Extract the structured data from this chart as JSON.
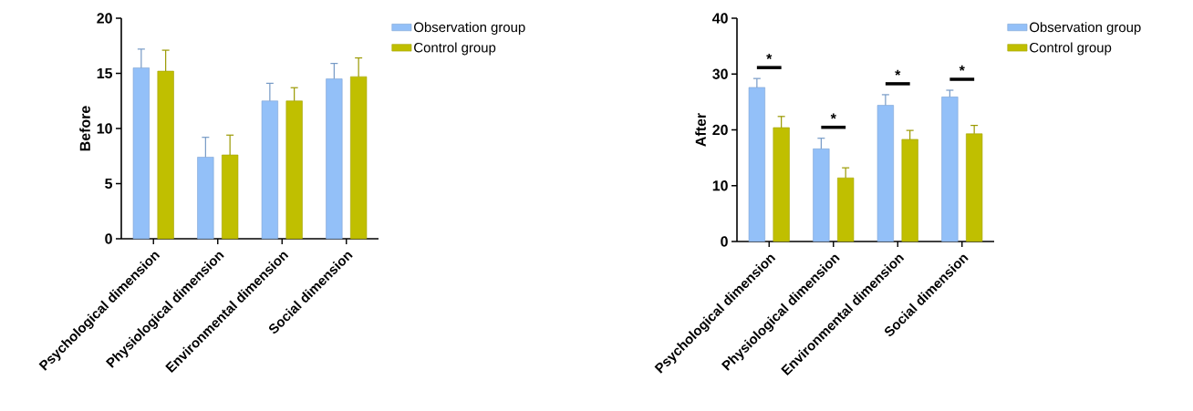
{
  "chart_data": [
    {
      "type": "bar",
      "ylabel": "Before",
      "categories": [
        "Psychological dimension",
        "Physiological dimension",
        "Environmental dimension",
        "Social dimension"
      ],
      "series": [
        {
          "name": "Observation group",
          "color": "#93c0f8",
          "values": [
            15.5,
            7.4,
            12.5,
            14.5
          ],
          "errors": [
            1.7,
            1.8,
            1.6,
            1.4
          ]
        },
        {
          "name": "Control group",
          "color": "#c0bf00",
          "values": [
            15.2,
            7.6,
            12.5,
            14.7
          ],
          "errors": [
            1.9,
            1.8,
            1.2,
            1.7
          ]
        }
      ],
      "ylim": [
        0,
        20
      ],
      "yticks": [
        0,
        5,
        10,
        15,
        20
      ],
      "legend": "top right",
      "grid": false
    },
    {
      "type": "bar",
      "ylabel": "After",
      "categories": [
        "Psychological dimension",
        "Physiological dimension",
        "Environmental dimension",
        "Social dimension"
      ],
      "series": [
        {
          "name": "Observation group",
          "color": "#93c0f8",
          "values": [
            27.6,
            16.6,
            24.4,
            25.9
          ],
          "errors": [
            1.6,
            1.9,
            1.9,
            1.2
          ]
        },
        {
          "name": "Control group",
          "color": "#c0bf00",
          "values": [
            20.4,
            11.4,
            18.3,
            19.3
          ],
          "errors": [
            2.0,
            1.8,
            1.6,
            1.5
          ]
        }
      ],
      "ylim": [
        0,
        40
      ],
      "yticks": [
        0,
        10,
        20,
        30,
        40
      ],
      "legend": "top right",
      "grid": false,
      "annotations": [
        "*",
        "*",
        "*",
        "*"
      ]
    }
  ]
}
